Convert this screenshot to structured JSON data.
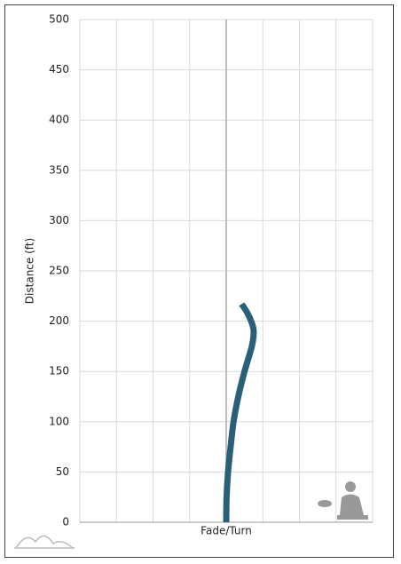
{
  "chart_data": {
    "type": "line",
    "xlabel": "Fade/Turn",
    "ylabel": "Distance (ft)",
    "x": [
      0,
      0.01,
      0.05,
      0.12,
      0.2,
      0.33,
      0.5,
      0.7,
      0.75,
      0.68,
      0.55,
      0.42
    ],
    "values": [
      0,
      25,
      50,
      75,
      100,
      125,
      150,
      175,
      190,
      200,
      210,
      217
    ],
    "color": "#2a6077",
    "xlim": [
      -4,
      4
    ],
    "xticks": [
      -4,
      -3,
      -2,
      -1,
      0,
      1,
      2,
      3,
      4
    ],
    "ylim": [
      0,
      500
    ],
    "yticks": [
      0,
      50,
      100,
      150,
      200,
      250,
      300,
      350,
      400,
      450,
      500
    ],
    "grid": true
  }
}
